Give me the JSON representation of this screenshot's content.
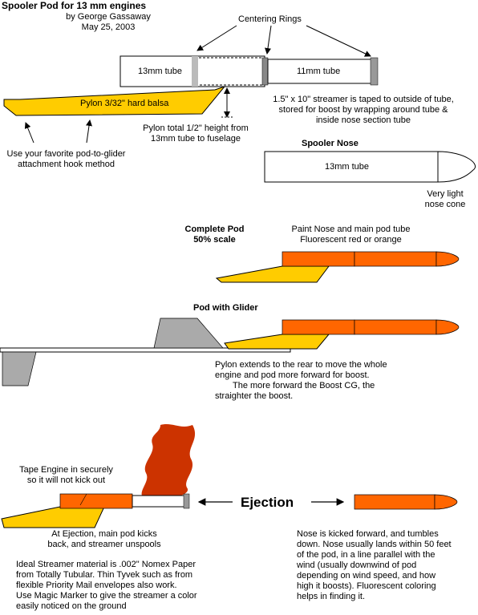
{
  "header": {
    "title": "Spooler Pod for 13 mm engines",
    "author": "by George Gassaway",
    "date": "May 25, 2003"
  },
  "top_section": {
    "centering_rings": "Centering Rings",
    "tube_13mm": "13mm tube",
    "tube_11mm": "11mm tube",
    "pylon": "Pylon  3/32\" hard balsa",
    "streamer_note": [
      "1.5\" x 10\" streamer is taped to outside of tube,",
      "stored for boost by wrapping around tube &",
      "inside nose section tube"
    ],
    "pylon_height": [
      "Pylon total 1/2\" height from",
      "13mm tube to fuselage"
    ],
    "hook_note": [
      "Use your favorite pod-to-glider",
      "attachment hook method"
    ],
    "spooler_nose_title": "Spooler Nose",
    "nose_tube": "13mm tube",
    "nose_cone": [
      "Very light",
      "nose cone"
    ]
  },
  "complete_pod": {
    "title": [
      "Complete Pod",
      "50% scale"
    ],
    "paint": [
      "Paint  Nose and main pod tube",
      "Fluorescent red or orange"
    ]
  },
  "pod_with_glider": {
    "title": "Pod with Glider",
    "note": [
      "Pylon extends to the rear to move the whole",
      "engine and pod more forward for boost.",
      "The  more  forward  the  Boost CG,   the",
      "straighter the boost."
    ]
  },
  "ejection": {
    "label": "Ejection",
    "tape_note": [
      "Tape Engine in securely",
      "so it will not kick out"
    ],
    "kick_note": [
      "At Ejection, main pod kicks",
      "back, and streamer unspools"
    ],
    "material_note": [
      "Ideal Streamer material is .002\" Nomex Paper",
      "from Totally Tubular. Thin Tyvek such as from",
      "flexible Priority Mail envelopes also work.",
      "Use Magic Marker to give the streamer a  color",
      "easily noticed on the ground"
    ],
    "nose_note": [
      "Nose   is  kicked forward, and  tumbles",
      "down. Nose usually lands within 50 feet",
      "of the pod, in a line  parallel with the",
      "wind   (usually  downwind  of  pod",
      "depending on wind speed, and how",
      "high it boosts). Fluorescent coloring",
      "helps in finding it."
    ]
  },
  "colors": {
    "pylon_yellow": "#ffcc00",
    "pod_orange": "#ff6600",
    "streamer_red": "#cc3300",
    "glider_gray": "#aaaaaa"
  }
}
